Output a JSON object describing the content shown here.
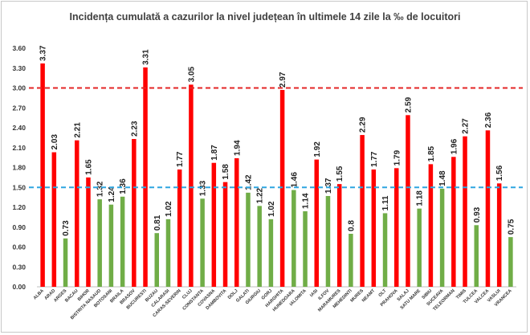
{
  "chart_data": {
    "type": "bar",
    "title": "Incidența cumulată a cazurilor la nivel județean în ultimele 14 zile la ‰ de locuitori",
    "xlabel": "",
    "ylabel": "",
    "ylim": [
      0,
      3.6
    ],
    "yticks": [
      "0.00",
      "0.30",
      "0.60",
      "0.90",
      "1.20",
      "1.50",
      "1.80",
      "2.10",
      "2.40",
      "2.70",
      "3.00",
      "3.30",
      "3.60"
    ],
    "grid": false,
    "legend": "none",
    "categories": [
      "ALBA",
      "ARAD",
      "ARGES",
      "BACAU",
      "BIHOR",
      "BISTRITA NASAUD",
      "BOTOSANI",
      "BRAILA",
      "BRASOV",
      "BUCURESTI",
      "BUZAU",
      "CALARASI",
      "CARAS-SEVERIN",
      "CLUJ",
      "CONSTANTA",
      "COVASNA",
      "DAMBOVITA",
      "DOLJ",
      "GALATI",
      "GIURGIU",
      "GORJ",
      "HARGHITA",
      "HUNEDOARA",
      "IALOMITA",
      "IASI",
      "ILFOV",
      "MARAMURES",
      "MEHEDINTI",
      "MURES",
      "NEAMT",
      "OLT",
      "PRAHOVA",
      "SALAJ",
      "SATU MARE",
      "SIBIU",
      "SUCEAVA",
      "TELEORMAN",
      "TIMIS",
      "TULCEA",
      "VALCEA",
      "VASLUI",
      "VRANCEA"
    ],
    "values": [
      3.37,
      2.03,
      0.73,
      2.21,
      1.65,
      1.32,
      1.24,
      1.36,
      2.23,
      3.31,
      0.81,
      1.02,
      1.77,
      3.05,
      1.33,
      1.87,
      1.58,
      1.94,
      1.42,
      1.22,
      1.02,
      2.97,
      1.46,
      1.14,
      1.92,
      1.37,
      1.55,
      0.8,
      2.29,
      1.77,
      1.11,
      1.79,
      2.59,
      1.18,
      1.85,
      1.48,
      1.96,
      2.27,
      0.93,
      2.36,
      1.56,
      0.75
    ],
    "value_labels": [
      "3.37",
      "2.03",
      "0.73",
      "2.21",
      "1.65",
      "1.32",
      "1.24",
      "1.36",
      "2.23",
      "3.31",
      "0.81",
      "1.02",
      "1.77",
      "3.05",
      "1.33",
      "1.87",
      "1.58",
      "1.94",
      "1.42",
      "1.22",
      "1.02",
      "2.97",
      "1.46",
      "1.14",
      "1.92",
      "1.37",
      "1.55",
      "0.8",
      "2.29",
      "1.77",
      "1.11",
      "1.79",
      "2.59",
      "1.18",
      "1.85",
      "1.48",
      "1.96",
      "2.27",
      "0.93",
      "2.36",
      "1.56",
      "0.75"
    ],
    "thresholds": [
      {
        "name": "upper-threshold",
        "value": 3.0,
        "color": "#e32626"
      },
      {
        "name": "lower-threshold",
        "value": 1.5,
        "color": "#2ea6e0"
      }
    ],
    "colors": {
      "above": "#ff0000",
      "below": "#70ad47",
      "axis": "#bfbfbf"
    }
  }
}
